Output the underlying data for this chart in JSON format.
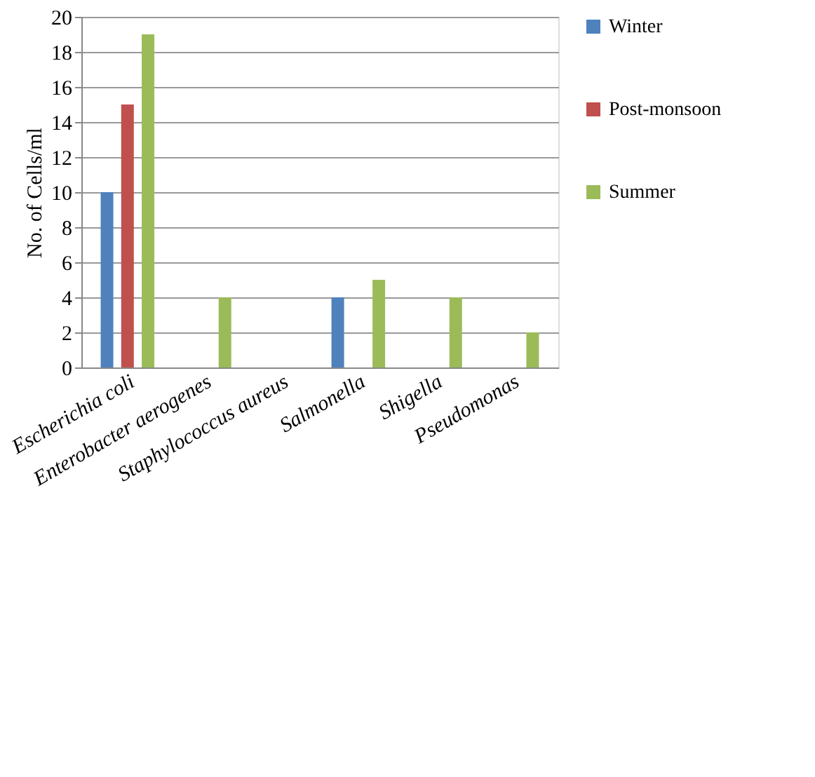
{
  "chart_data": {
    "type": "bar",
    "ylabel": "No. of Cells/ml",
    "categories": [
      "Escherichia coli",
      "Enterobacter aerogenes",
      "Staphylococcus aureus",
      "Salmonella",
      "Shigella",
      "Pseudomonas"
    ],
    "series": [
      {
        "name": "Winter",
        "color": "#4f81bd",
        "values": [
          10,
          0,
          0,
          4,
          0,
          0
        ]
      },
      {
        "name": "Post-monsoon",
        "color": "#c0504d",
        "values": [
          15,
          0,
          0,
          0,
          0,
          0
        ]
      },
      {
        "name": "Summer",
        "color": "#9bbb59",
        "values": [
          19,
          4,
          0,
          5,
          4,
          2
        ]
      }
    ],
    "ylim": [
      0,
      20
    ],
    "yticks": [
      0,
      2,
      4,
      6,
      8,
      10,
      12,
      14,
      16,
      18,
      20
    ],
    "grid": "y",
    "legend": "right"
  }
}
